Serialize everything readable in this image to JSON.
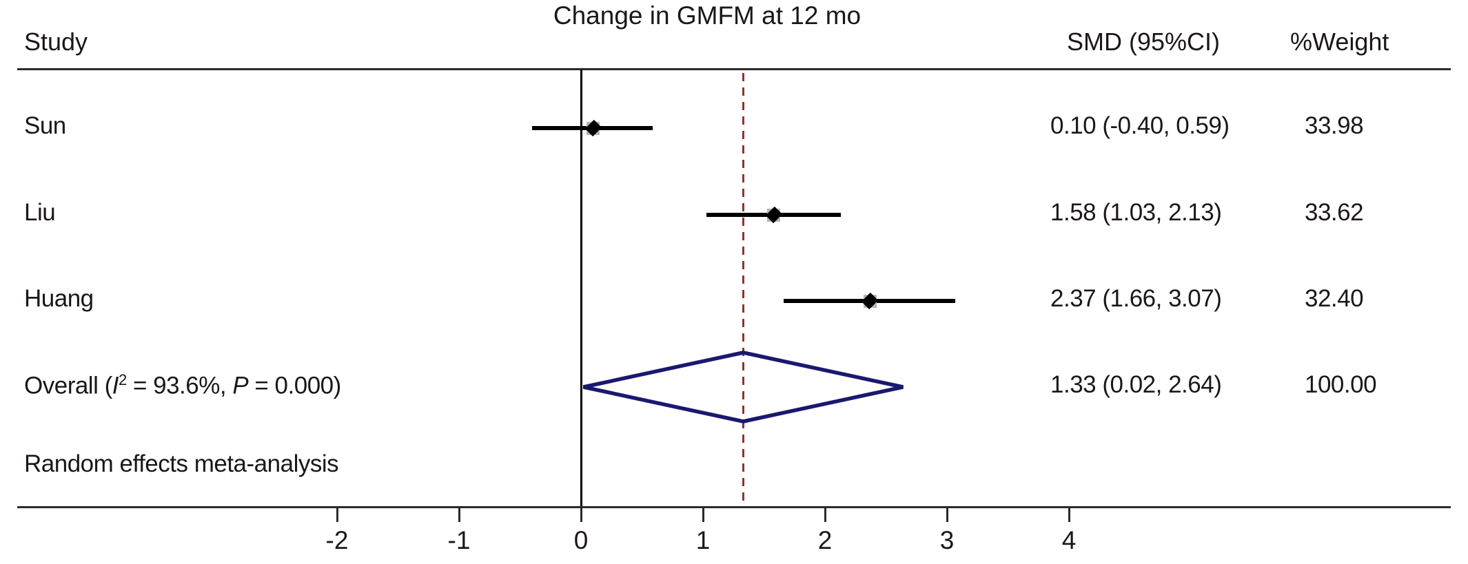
{
  "chart_data": {
    "type": "forest",
    "title": "Change in GMFM at 12 mo",
    "columns": {
      "study": "Study",
      "smd": "SMD (95%CI)",
      "weight": "%Weight"
    },
    "studies": [
      {
        "label": "Sun",
        "smd": 0.1,
        "ci_low": -0.4,
        "ci_high": 0.59,
        "smd_text": "0.10 (-0.40, 0.59)",
        "weight": 33.98,
        "weight_text": "33.98"
      },
      {
        "label": "Liu",
        "smd": 1.58,
        "ci_low": 1.03,
        "ci_high": 2.13,
        "smd_text": "1.58 (1.03, 2.13)",
        "weight": 33.62,
        "weight_text": "33.62"
      },
      {
        "label": "Huang",
        "smd": 2.37,
        "ci_low": 1.66,
        "ci_high": 3.07,
        "smd_text": "2.37 (1.66, 3.07)",
        "weight": 32.4,
        "weight_text": "32.40"
      }
    ],
    "overall": {
      "label_prefix": "Overall (",
      "label_stat_i": "I",
      "label_sup": "2",
      "label_mid": " = 93.6%, ",
      "label_p": "P",
      "label_suffix": " = 0.000)",
      "smd": 1.33,
      "ci_low": 0.02,
      "ci_high": 2.64,
      "smd_text": "1.33 (0.02, 2.64)",
      "weight_text": "100.00"
    },
    "note": "Random effects meta-analysis",
    "axis": {
      "ticks": [
        -2,
        -1,
        0,
        1,
        2,
        3,
        4
      ],
      "zero_line_at": 0,
      "dashed_line_at": 1.33
    }
  },
  "colors": {
    "diamond": "#191970",
    "dashed_line": "#8a3434",
    "ci_line": "#000000",
    "weight_box": "#b5b5b5",
    "marker": "#000000",
    "text": "#1c1717"
  }
}
